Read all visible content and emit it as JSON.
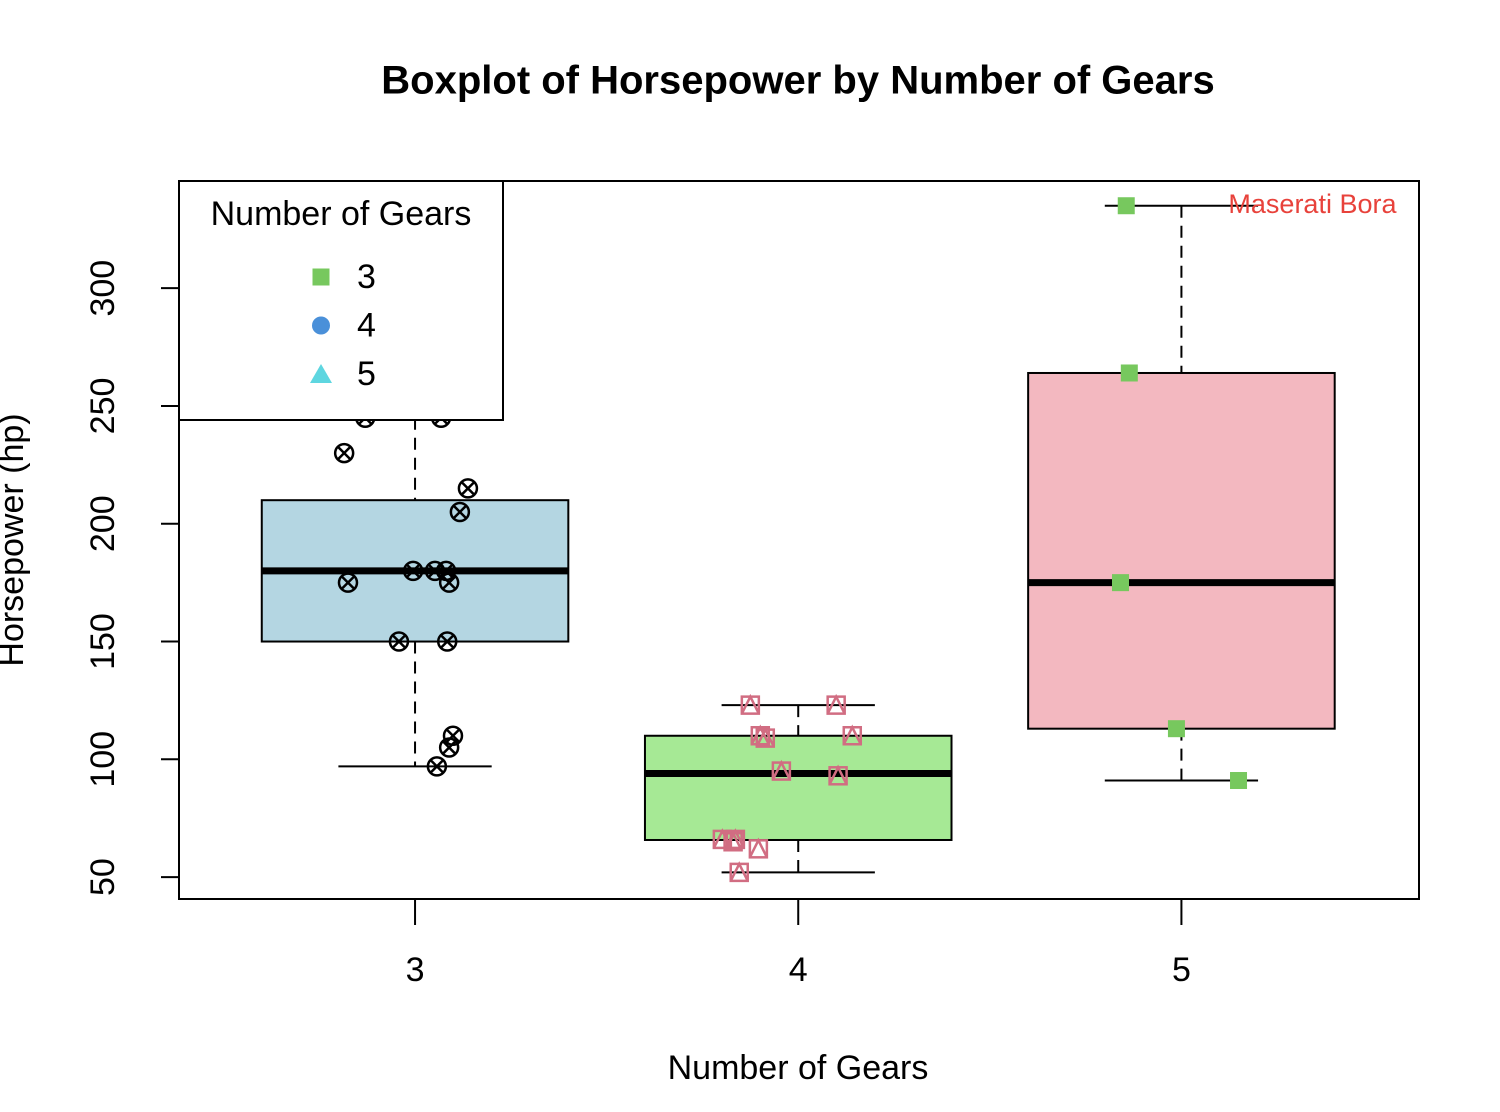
{
  "chart_data": {
    "type": "box",
    "title": "Boxplot of Horsepower by Number of Gears",
    "x_label": "Number of Gears",
    "y_label": "Horsepower (hp)",
    "categories": [
      3,
      4,
      5
    ],
    "boxes": [
      {
        "min": 97,
        "q1": 150,
        "median": 180,
        "q3": 210,
        "max": 245,
        "color": "#b4d6e2"
      },
      {
        "min": 52,
        "q1": 65.75,
        "median": 94,
        "q3": 110,
        "max": 123,
        "color": "#a6e995"
      },
      {
        "min": 91,
        "q1": 113,
        "median": 175,
        "q3": 264,
        "max": 335,
        "color": "#f3b8c0"
      }
    ],
    "points": [
      {
        "color": "#000000",
        "marker": "circle-x",
        "x": [
          2.815,
          2.87,
          3.068,
          3.138,
          3.117,
          2.995,
          3.052,
          3.081,
          2.825,
          3.089,
          2.958,
          3.084,
          3.099,
          3.089,
          3.057
        ],
        "y": [
          230,
          245,
          245,
          215,
          205,
          180,
          180,
          180,
          175,
          175,
          150,
          150,
          110,
          105,
          97
        ]
      },
      {
        "color": "#d16d82",
        "marker": "square-triangle",
        "x": [
          3.875,
          4.099,
          3.901,
          3.914,
          4.141,
          3.956,
          4.104,
          3.802,
          3.83,
          3.836,
          3.896,
          3.846
        ],
        "y": [
          123,
          123,
          110,
          109,
          110,
          95,
          93,
          66,
          65,
          66,
          62,
          52
        ]
      },
      {
        "color": "#77c85e",
        "marker": "square",
        "x": [
          4.856,
          4.864,
          4.841,
          4.987,
          5.149
        ],
        "y": [
          335,
          264,
          175,
          113,
          91
        ]
      }
    ],
    "annotation": {
      "text": "Maserati Bora",
      "color": "#e8423b"
    },
    "xlim": [
      2.384,
      5.62
    ],
    "ylim": [
      40.7,
      345.5
    ],
    "yticks": [
      50,
      100,
      150,
      200,
      250,
      300
    ],
    "legend": {
      "title": "Number of Gears",
      "position": "top-left",
      "entries": [
        {
          "name": "3",
          "color": "#77c85e",
          "marker": "square"
        },
        {
          "name": "4",
          "color": "#4a90d9",
          "marker": "circle"
        },
        {
          "name": "5",
          "color": "#5ed6e0",
          "marker": "triangle"
        }
      ]
    }
  }
}
